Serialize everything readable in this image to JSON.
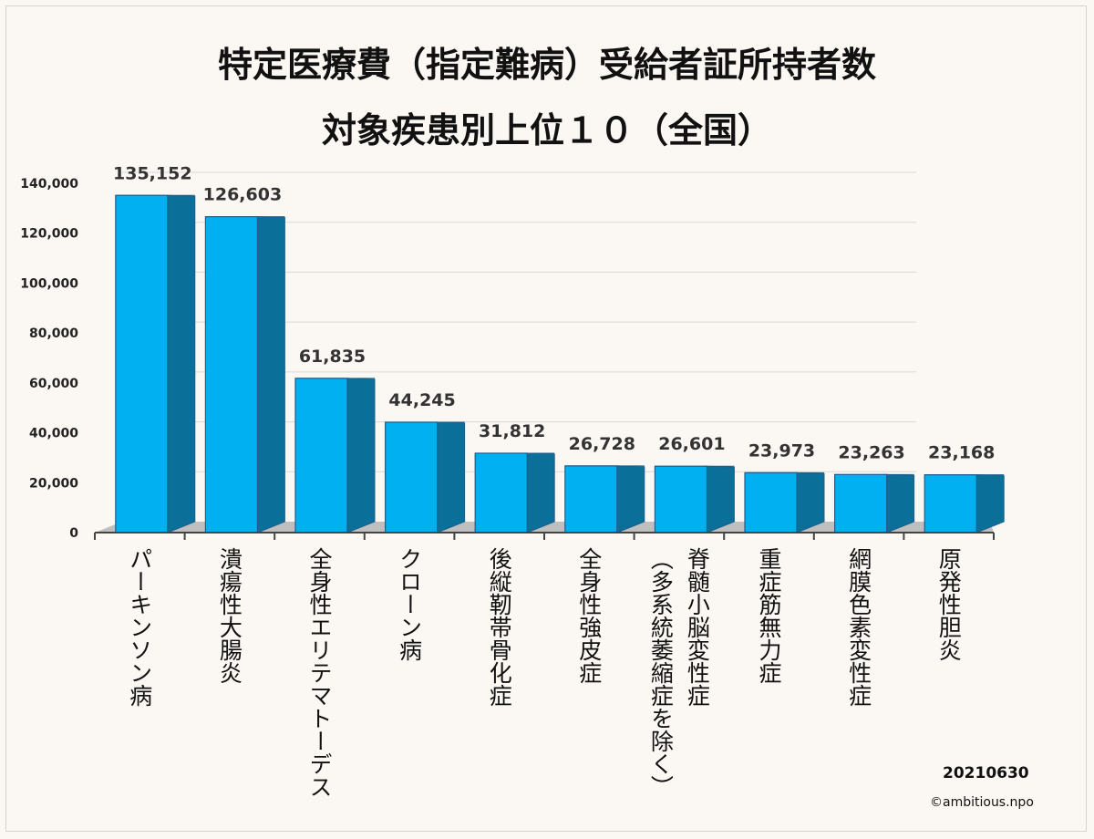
{
  "chart_data": {
    "type": "bar",
    "title_lines": [
      "特定医療費（指定難病）受給者証所持者数",
      "対象疾患別上位１０（全国）"
    ],
    "categories": [
      "パーキンソン病",
      "潰瘍性大腸炎",
      "全身性エリテマトーデス",
      "クローン病",
      "後縦靭帯骨化症",
      "全身性強皮症",
      "脊髄小脳変性症（多系統萎縮症を除く）",
      "重症筋無力症",
      "網膜色素変性症",
      "原発性胆炎"
    ],
    "category_columns": [
      [
        "パーキンソン病"
      ],
      [
        "潰瘍性大腸炎"
      ],
      [
        "全身性エリテマトーデス"
      ],
      [
        "クローン病"
      ],
      [
        "後縦靭帯骨化症"
      ],
      [
        "全身性強皮症"
      ],
      [
        "脊髄小脳変性症",
        "（多系統萎縮症を除く）"
      ],
      [
        "重症筋無力症"
      ],
      [
        "網膜色素変性症"
      ],
      [
        "原発性胆炎"
      ]
    ],
    "values": [
      135152,
      126603,
      61835,
      44245,
      31812,
      26728,
      26601,
      23973,
      23263,
      23168
    ],
    "data_labels": [
      "135,152",
      "126,603",
      "61,835",
      "44,245",
      "31,812",
      "26,728",
      "26,601",
      "23,973",
      "23,263",
      "23,168"
    ],
    "ylim": [
      0,
      140000
    ],
    "yticks": [
      0,
      20000,
      40000,
      60000,
      80000,
      100000,
      120000,
      140000
    ],
    "ytick_labels": [
      "0",
      "20,000",
      "40,000",
      "60,000",
      "80,000",
      "100,000",
      "120,000",
      "140,000"
    ],
    "grid": true,
    "bar_color": "#00b0f0",
    "bar_side_color": "#0a6f99",
    "floor_color": "#bfbfbf"
  },
  "footer": {
    "date": "20210630",
    "credit": "©ambitious.npo"
  }
}
